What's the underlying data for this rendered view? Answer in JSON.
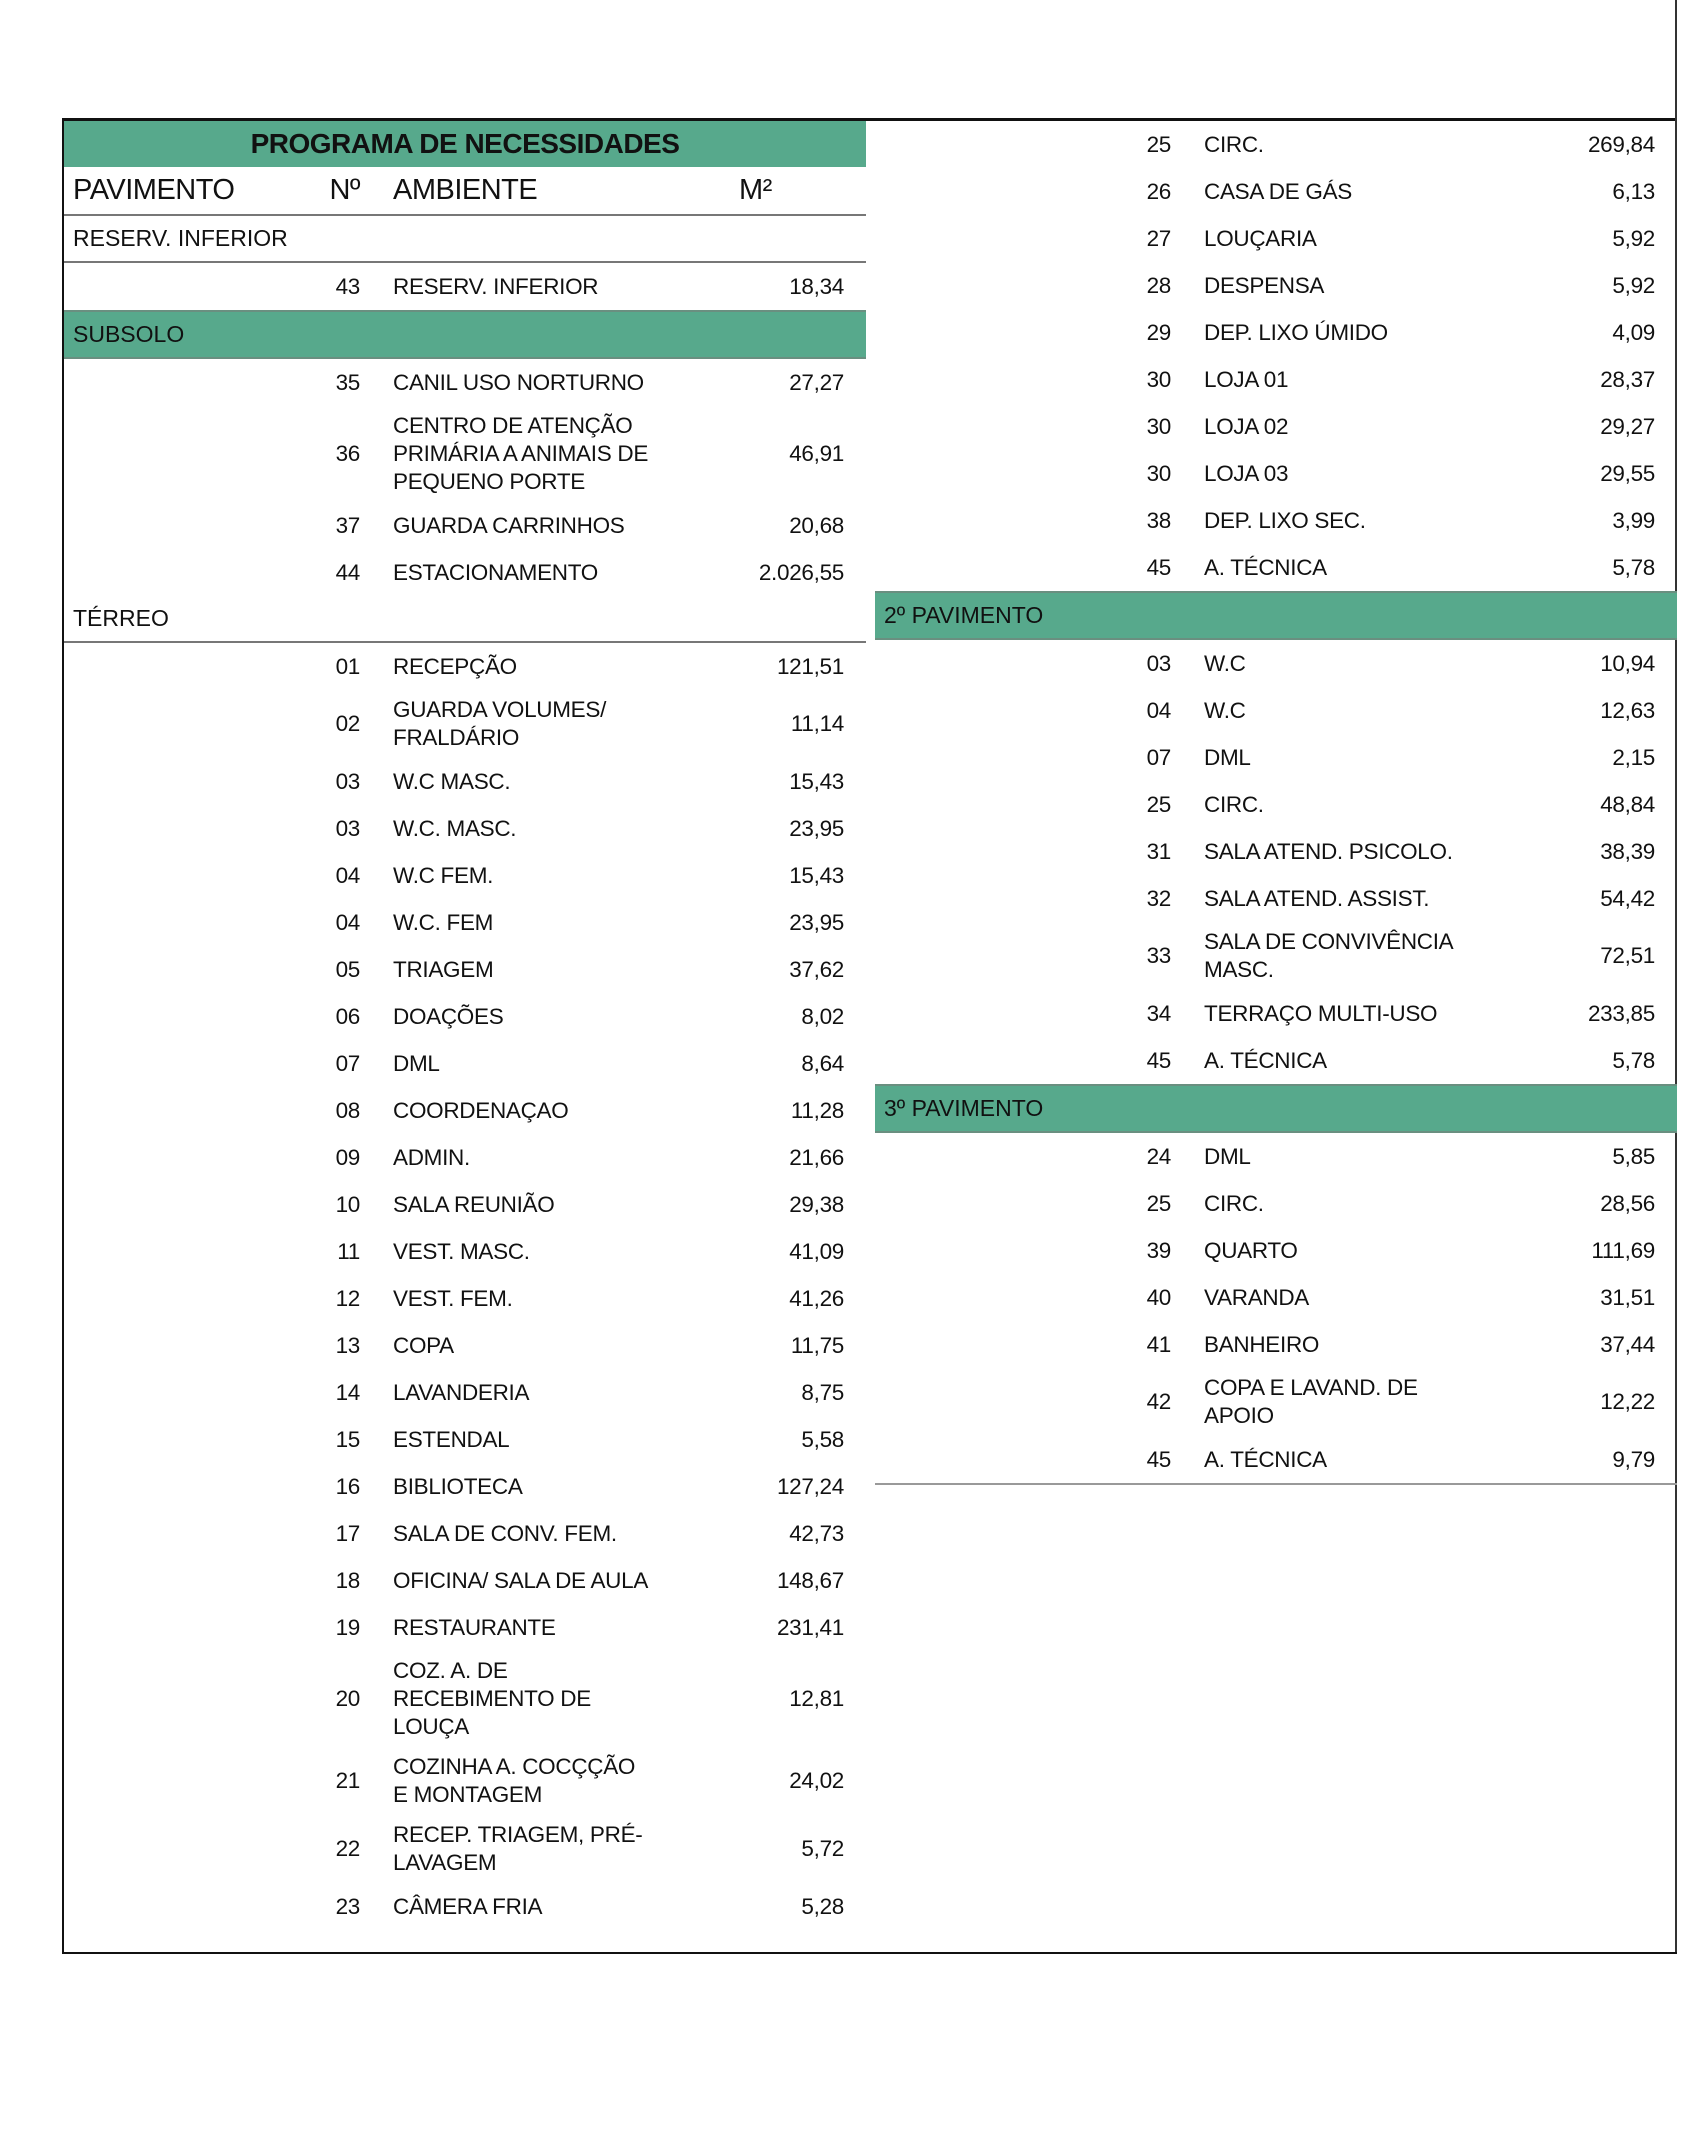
{
  "title": "PROGRAMA DE NECESSIDADES",
  "headers": {
    "pavimento": "PAVIMENTO",
    "numero": "Nº",
    "ambiente": "AMBIENTE",
    "area": "M²"
  },
  "colors": {
    "band": "#57a98c"
  },
  "left": [
    {
      "label": "RESERV. INFERIOR",
      "highlighted": false,
      "rows": [
        [
          "43",
          "RESERV. INFERIOR",
          "18,34"
        ]
      ]
    },
    {
      "label": "SUBSOLO",
      "highlighted": true,
      "rows": [
        [
          "35",
          "CANIL USO NORTURNO",
          "27,27"
        ],
        [
          "36",
          "CENTRO DE ATENÇÃO\nPRIMÁRIA A ANIMAIS DE\nPEQUENO PORTE",
          "46,91"
        ],
        [
          "37",
          "GUARDA CARRINHOS",
          "20,68"
        ],
        [
          "44",
          "ESTACIONAMENTO",
          "2.026,55"
        ]
      ]
    },
    {
      "label": "TÉRREO",
      "highlighted": false,
      "rows": [
        [
          "01",
          "RECEPÇÃO",
          "121,51"
        ],
        [
          "02",
          "GUARDA VOLUMES/\nFRALDÁRIO",
          "11,14"
        ],
        [
          "03",
          "W.C MASC.",
          "15,43"
        ],
        [
          "03",
          "W.C. MASC.",
          "23,95"
        ],
        [
          "04",
          "W.C FEM.",
          "15,43"
        ],
        [
          "04",
          "W.C. FEM",
          "23,95"
        ],
        [
          "05",
          "TRIAGEM",
          "37,62"
        ],
        [
          "06",
          "DOAÇÕES",
          "8,02"
        ],
        [
          "07",
          "DML",
          "8,64"
        ],
        [
          "08",
          "COORDENAÇAO",
          "11,28"
        ],
        [
          "09",
          "ADMIN.",
          "21,66"
        ],
        [
          "10",
          "SALA REUNIÃO",
          "29,38"
        ],
        [
          "11",
          "VEST. MASC.",
          "41,09"
        ],
        [
          "12",
          "VEST. FEM.",
          "41,26"
        ],
        [
          "13",
          "COPA",
          "11,75"
        ],
        [
          "14",
          "LAVANDERIA",
          "8,75"
        ],
        [
          "15",
          "ESTENDAL",
          "5,58"
        ],
        [
          "16",
          "BIBLIOTECA",
          "127,24"
        ],
        [
          "17",
          "SALA DE CONV. FEM.",
          "42,73"
        ],
        [
          "18",
          "OFICINA/ SALA DE AULA",
          "148,67"
        ],
        [
          "19",
          "RESTAURANTE",
          "231,41"
        ],
        [
          "20",
          "COZ. A. DE\nRECEBIMENTO DE\nLOUÇA",
          "12,81"
        ],
        [
          "21",
          "COZINHA A. COCÇÇÃO\nE MONTAGEM",
          "24,02"
        ],
        [
          "22",
          "RECEP. TRIAGEM, PRÉ-\nLAVAGEM",
          "5,72"
        ],
        [
          "23",
          "CÂMERA FRIA",
          "5,28"
        ]
      ]
    }
  ],
  "right": [
    {
      "label": null,
      "highlighted": false,
      "rows": [
        [
          "25",
          "CIRC.",
          "269,84"
        ],
        [
          "26",
          "CASA DE GÁS",
          "6,13"
        ],
        [
          "27",
          "LOUÇARIA",
          "5,92"
        ],
        [
          "28",
          "DESPENSA",
          "5,92"
        ],
        [
          "29",
          "DEP. LIXO ÚMIDO",
          "4,09"
        ],
        [
          "30",
          "LOJA 01",
          "28,37"
        ],
        [
          "30",
          "LOJA 02",
          "29,27"
        ],
        [
          "30",
          "LOJA 03",
          "29,55"
        ],
        [
          "38",
          "DEP. LIXO SEC.",
          "3,99"
        ],
        [
          "45",
          "A. TÉCNICA",
          "5,78"
        ]
      ]
    },
    {
      "label": "2º PAVIMENTO",
      "highlighted": true,
      "rows": [
        [
          "03",
          "W.C",
          "10,94"
        ],
        [
          "04",
          "W.C",
          "12,63"
        ],
        [
          "07",
          "DML",
          "2,15"
        ],
        [
          "25",
          "CIRC.",
          "48,84"
        ],
        [
          "31",
          "SALA ATEND. PSICOLO.",
          "38,39"
        ],
        [
          "32",
          "SALA ATEND. ASSIST.",
          "54,42"
        ],
        [
          "33",
          "SALA DE CONVIVÊNCIA\nMASC.",
          "72,51"
        ],
        [
          "34",
          "TERRAÇO MULTI-USO",
          "233,85"
        ],
        [
          "45",
          "A. TÉCNICA",
          "5,78"
        ]
      ]
    },
    {
      "label": "3º PAVIMENTO",
      "highlighted": true,
      "rows": [
        [
          "24",
          "DML",
          "5,85"
        ],
        [
          "25",
          "CIRC.",
          "28,56"
        ],
        [
          "39",
          "QUARTO",
          "111,69"
        ],
        [
          "40",
          "VARANDA",
          "31,51"
        ],
        [
          "41",
          "BANHEIRO",
          "37,44"
        ],
        [
          "42",
          "COPA E LAVAND. DE\nAPOIO",
          "12,22"
        ],
        [
          "45",
          "A. TÉCNICA",
          "9,79"
        ]
      ]
    }
  ]
}
